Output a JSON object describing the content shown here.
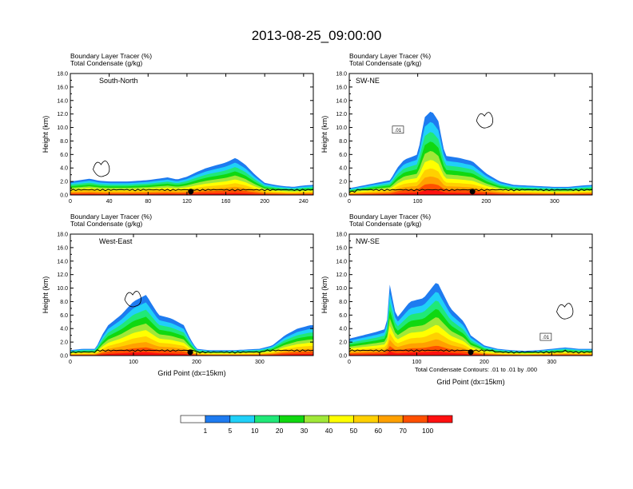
{
  "title": "2013-08-25_09:00:00",
  "footer_note": "Total Condensate Contours: .01 to .01 by .000",
  "colorbar": {
    "colors": [
      "#ffffff",
      "#1e7bf0",
      "#20d0f8",
      "#20e878",
      "#10d810",
      "#a0e838",
      "#ffff00",
      "#ffd000",
      "#ffa000",
      "#ff5000",
      "#ff1010"
    ],
    "labels": [
      "1",
      "5",
      "10",
      "20",
      "30",
      "40",
      "50",
      "60",
      "70",
      "100"
    ]
  },
  "chart_data": [
    {
      "type": "heatmap",
      "header": [
        "Boundary Layer Tracer   (%)",
        "Total Condensate   (g/kg)"
      ],
      "panel_label": "South-North",
      "ylabel": "Height (km)",
      "xlabel": "",
      "xlim": [
        0,
        250
      ],
      "ylim": [
        0,
        18
      ],
      "xticks": [
        "0",
        "40",
        "80",
        "120",
        "160",
        "200",
        "240"
      ],
      "yticks": [
        "0.0",
        "2.0",
        "4.0",
        "6.0",
        "8.0",
        "10.0",
        "12.0",
        "14.0",
        "16.0",
        "18.0"
      ],
      "contour_labels": [],
      "marker_x": 124,
      "profile": {
        "x": [
          0,
          10,
          20,
          30,
          40,
          50,
          60,
          70,
          80,
          90,
          100,
          110,
          120,
          130,
          140,
          150,
          160,
          170,
          180,
          190,
          200,
          210,
          220,
          230,
          240,
          250
        ],
        "top": [
          2.0,
          2.2,
          2.4,
          2.1,
          2.0,
          2.0,
          2.0,
          2.1,
          2.2,
          2.4,
          2.6,
          2.3,
          2.7,
          3.4,
          4.0,
          4.4,
          4.8,
          5.5,
          4.5,
          3.0,
          1.8,
          1.5,
          1.3,
          1.2,
          1.4,
          1.5
        ]
      }
    },
    {
      "type": "heatmap",
      "header": [
        "Boundary Layer Tracer   (%)",
        "Total Condensate   (g/kg)"
      ],
      "panel_label": "SW-NE",
      "ylabel": "Height (km)",
      "xlabel": "",
      "xlim": [
        0,
        355
      ],
      "ylim": [
        0,
        18
      ],
      "xticks": [
        "0",
        "100",
        "200",
        "300"
      ],
      "yticks": [
        "0.0",
        "2.0",
        "4.0",
        "6.0",
        "8.0",
        "10.0",
        "12.0",
        "14.0",
        "16.0",
        "18.0"
      ],
      "contour_labels": [
        ".01"
      ],
      "marker_x": 180,
      "profile": {
        "x": [
          0,
          20,
          40,
          60,
          70,
          80,
          100,
          110,
          120,
          130,
          140,
          160,
          180,
          200,
          220,
          240,
          260,
          280,
          300,
          320,
          340,
          355
        ],
        "top": [
          1.0,
          1.4,
          1.8,
          2.2,
          4.0,
          5.2,
          6.0,
          11.5,
          12.5,
          11.0,
          5.8,
          5.5,
          5.0,
          3.2,
          2.0,
          1.5,
          1.4,
          1.3,
          1.2,
          1.2,
          1.4,
          1.5
        ]
      }
    },
    {
      "type": "heatmap",
      "header": [
        "Boundary Layer Tracer   (%)",
        "Total Condensate   (g/kg)"
      ],
      "panel_label": "West-East",
      "ylabel": "Height (km)",
      "xlabel": "Grid Point (dx=15km)",
      "xlim": [
        0,
        385
      ],
      "ylim": [
        0,
        18
      ],
      "xticks": [
        "0",
        "100",
        "200",
        "300"
      ],
      "yticks": [
        "0.0",
        "2.0",
        "4.0",
        "6.0",
        "8.0",
        "10.0",
        "12.0",
        "14.0",
        "16.0",
        "18.0"
      ],
      "contour_labels": [],
      "marker_x": 190,
      "profile": {
        "x": [
          0,
          20,
          40,
          50,
          60,
          80,
          100,
          120,
          140,
          160,
          180,
          190,
          200,
          220,
          240,
          260,
          280,
          300,
          320,
          340,
          360,
          380,
          385
        ],
        "top": [
          0.8,
          1.0,
          1.0,
          3.0,
          4.5,
          6.0,
          8.0,
          9.0,
          6.0,
          5.5,
          4.5,
          2.5,
          1.0,
          0.8,
          0.8,
          0.8,
          0.9,
          1.0,
          1.5,
          3.0,
          4.0,
          4.5,
          4.5
        ]
      }
    },
    {
      "type": "heatmap",
      "header": [
        "Boundary Layer Tracer   (%)",
        "Total Condensate   (g/kg)"
      ],
      "panel_label": "NW-SE",
      "ylabel": "Height (km)",
      "xlabel": "Grid Point (dx=15km)",
      "xlim": [
        0,
        360
      ],
      "ylim": [
        0,
        18
      ],
      "xticks": [
        "0",
        "100",
        "200",
        "300"
      ],
      "yticks": [
        "0.0",
        "2.0",
        "4.0",
        "6.0",
        "8.0",
        "10.0",
        "12.0",
        "14.0",
        "16.0",
        "18.0"
      ],
      "contour_labels": [
        ".01"
      ],
      "marker_x": 180,
      "profile": {
        "x": [
          0,
          20,
          40,
          55,
          60,
          70,
          90,
          110,
          130,
          150,
          170,
          180,
          200,
          220,
          240,
          260,
          280,
          300,
          320,
          340,
          360
        ],
        "top": [
          2.5,
          3.0,
          3.5,
          4.0,
          10.5,
          5.5,
          8.0,
          8.5,
          11.0,
          7.0,
          5.0,
          3.0,
          1.5,
          1.0,
          0.8,
          0.7,
          0.8,
          1.0,
          1.2,
          1.0,
          1.0
        ]
      }
    }
  ]
}
